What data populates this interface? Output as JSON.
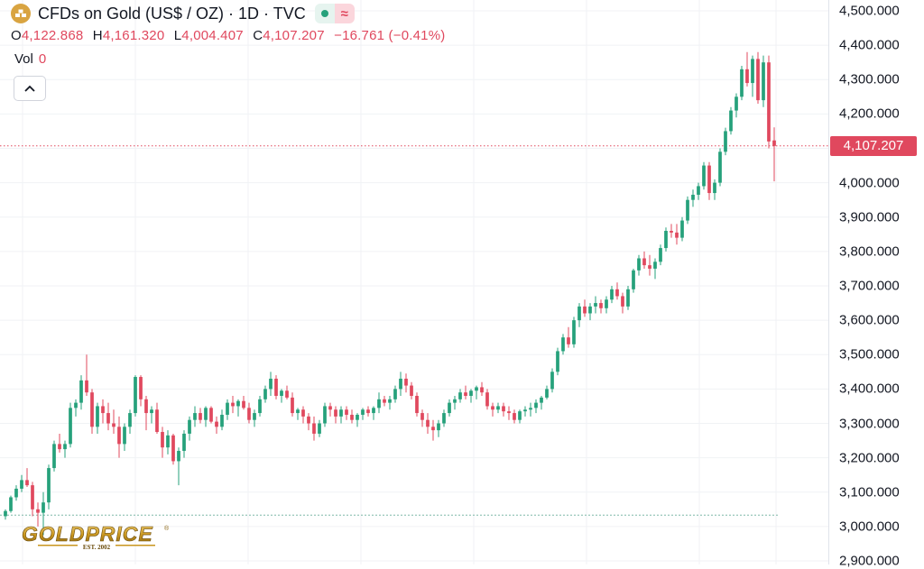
{
  "header": {
    "symbol_title": "CFDs on Gold (US$ / OZ) · 1D · TVC",
    "wave_symbol": "≈",
    "icons": {
      "symbol": "gold-bars-icon",
      "status": "market-open-dot-icon",
      "wave": "approx-wave-icon"
    },
    "ohlc": {
      "o_label": "O",
      "o_value": "4,122.868",
      "h_label": "H",
      "h_value": "4,161.320",
      "l_label": "L",
      "l_value": "4,004.407",
      "c_label": "C",
      "c_value": "4,107.207",
      "change": "−16.761 (−0.41%)"
    },
    "volume": {
      "label": "Vol",
      "value": "0"
    },
    "collapse_icon": "chevron-up-icon"
  },
  "colors": {
    "up": "#26a17b",
    "down": "#e0485e",
    "accent": "#d9a441"
  },
  "price_label": "4,107.207",
  "logo": {
    "text": "GOLDPRICE",
    "subtext": "EST. 2002",
    "mark": "®"
  },
  "chart_data": {
    "type": "candlestick",
    "title": "CFDs on Gold (US$ / OZ) · 1D · TVC",
    "xlabel": "",
    "ylabel": "",
    "ylim": [
      2900,
      4550
    ],
    "grid": true,
    "y_ticks": [
      "4,500.000",
      "4,400.000",
      "4,300.000",
      "4,200.000",
      "4,100.000",
      "4,000.000",
      "3,900.000",
      "3,800.000",
      "3,700.000",
      "3,600.000",
      "3,500.000",
      "3,400.000",
      "3,300.000",
      "3,200.000",
      "3,100.000",
      "3,000.000",
      "2,900.000"
    ],
    "y_tick_values": [
      4500,
      4400,
      4300,
      4200,
      4100,
      4000,
      3900,
      3800,
      3700,
      3600,
      3500,
      3400,
      3300,
      3200,
      3100,
      3000,
      2900
    ],
    "current_price": 4107.207,
    "reference_price": 3033,
    "candles": [
      [
        3030,
        3050,
        3020,
        3045
      ],
      [
        3045,
        3090,
        3040,
        3085
      ],
      [
        3085,
        3120,
        3075,
        3110
      ],
      [
        3110,
        3150,
        3100,
        3135
      ],
      [
        3135,
        3170,
        3115,
        3120
      ],
      [
        3120,
        3130,
        3030,
        3050
      ],
      [
        3050,
        3070,
        3000,
        3040
      ],
      [
        3040,
        3100,
        2975,
        3070
      ],
      [
        3070,
        3180,
        3050,
        3170
      ],
      [
        3170,
        3250,
        3160,
        3240
      ],
      [
        3240,
        3270,
        3215,
        3225
      ],
      [
        3225,
        3250,
        3200,
        3240
      ],
      [
        3240,
        3360,
        3230,
        3345
      ],
      [
        3345,
        3370,
        3320,
        3360
      ],
      [
        3360,
        3440,
        3340,
        3425
      ],
      [
        3425,
        3500,
        3380,
        3390
      ],
      [
        3390,
        3400,
        3270,
        3290
      ],
      [
        3290,
        3360,
        3270,
        3350
      ],
      [
        3350,
        3370,
        3300,
        3330
      ],
      [
        3330,
        3360,
        3280,
        3300
      ],
      [
        3300,
        3340,
        3270,
        3290
      ],
      [
        3290,
        3320,
        3200,
        3240
      ],
      [
        3240,
        3300,
        3220,
        3290
      ],
      [
        3290,
        3340,
        3270,
        3330
      ],
      [
        3330,
        3440,
        3320,
        3435
      ],
      [
        3435,
        3440,
        3350,
        3370
      ],
      [
        3370,
        3380,
        3280,
        3330
      ],
      [
        3330,
        3350,
        3300,
        3340
      ],
      [
        3340,
        3360,
        3270,
        3275
      ],
      [
        3275,
        3290,
        3200,
        3230
      ],
      [
        3230,
        3280,
        3210,
        3265
      ],
      [
        3265,
        3270,
        3180,
        3190
      ],
      [
        3190,
        3230,
        3120,
        3220
      ],
      [
        3220,
        3280,
        3200,
        3270
      ],
      [
        3270,
        3320,
        3250,
        3310
      ],
      [
        3310,
        3350,
        3290,
        3330
      ],
      [
        3330,
        3345,
        3300,
        3310
      ],
      [
        3310,
        3350,
        3290,
        3345
      ],
      [
        3345,
        3350,
        3300,
        3305
      ],
      [
        3305,
        3320,
        3270,
        3290
      ],
      [
        3290,
        3340,
        3280,
        3325
      ],
      [
        3325,
        3370,
        3310,
        3360
      ],
      [
        3360,
        3380,
        3330,
        3350
      ],
      [
        3350,
        3370,
        3320,
        3365
      ],
      [
        3365,
        3380,
        3340,
        3345
      ],
      [
        3345,
        3360,
        3300,
        3310
      ],
      [
        3310,
        3340,
        3290,
        3330
      ],
      [
        3330,
        3380,
        3320,
        3370
      ],
      [
        3370,
        3410,
        3360,
        3400
      ],
      [
        3400,
        3450,
        3380,
        3430
      ],
      [
        3430,
        3440,
        3370,
        3380
      ],
      [
        3380,
        3400,
        3360,
        3395
      ],
      [
        3395,
        3410,
        3370,
        3375
      ],
      [
        3375,
        3390,
        3320,
        3330
      ],
      [
        3330,
        3345,
        3310,
        3340
      ],
      [
        3340,
        3350,
        3300,
        3320
      ],
      [
        3320,
        3330,
        3280,
        3300
      ],
      [
        3300,
        3320,
        3250,
        3270
      ],
      [
        3270,
        3310,
        3260,
        3300
      ],
      [
        3300,
        3360,
        3290,
        3350
      ],
      [
        3350,
        3360,
        3320,
        3340
      ],
      [
        3340,
        3350,
        3300,
        3320
      ],
      [
        3320,
        3350,
        3300,
        3340
      ],
      [
        3340,
        3350,
        3310,
        3325
      ],
      [
        3325,
        3340,
        3300,
        3310
      ],
      [
        3310,
        3330,
        3290,
        3325
      ],
      [
        3325,
        3345,
        3310,
        3340
      ],
      [
        3340,
        3350,
        3320,
        3330
      ],
      [
        3330,
        3350,
        3310,
        3345
      ],
      [
        3345,
        3390,
        3330,
        3370
      ],
      [
        3370,
        3380,
        3350,
        3360
      ],
      [
        3360,
        3380,
        3340,
        3370
      ],
      [
        3370,
        3410,
        3360,
        3400
      ],
      [
        3400,
        3450,
        3380,
        3430
      ],
      [
        3430,
        3445,
        3390,
        3410
      ],
      [
        3410,
        3420,
        3370,
        3380
      ],
      [
        3380,
        3390,
        3320,
        3330
      ],
      [
        3330,
        3340,
        3290,
        3310
      ],
      [
        3310,
        3330,
        3270,
        3290
      ],
      [
        3290,
        3310,
        3250,
        3280
      ],
      [
        3280,
        3310,
        3260,
        3300
      ],
      [
        3300,
        3340,
        3290,
        3330
      ],
      [
        3330,
        3370,
        3320,
        3360
      ],
      [
        3360,
        3380,
        3340,
        3370
      ],
      [
        3370,
        3400,
        3360,
        3390
      ],
      [
        3390,
        3410,
        3370,
        3380
      ],
      [
        3380,
        3400,
        3360,
        3395
      ],
      [
        3395,
        3410,
        3370,
        3405
      ],
      [
        3405,
        3420,
        3380,
        3390
      ],
      [
        3390,
        3400,
        3340,
        3350
      ],
      [
        3350,
        3360,
        3320,
        3340
      ],
      [
        3340,
        3360,
        3330,
        3350
      ],
      [
        3350,
        3360,
        3320,
        3335
      ],
      [
        3335,
        3350,
        3310,
        3330
      ],
      [
        3330,
        3340,
        3300,
        3310
      ],
      [
        3310,
        3340,
        3300,
        3335
      ],
      [
        3335,
        3350,
        3320,
        3340
      ],
      [
        3340,
        3360,
        3320,
        3345
      ],
      [
        3345,
        3370,
        3330,
        3360
      ],
      [
        3360,
        3380,
        3340,
        3375
      ],
      [
        3375,
        3410,
        3370,
        3400
      ],
      [
        3400,
        3460,
        3390,
        3450
      ],
      [
        3450,
        3520,
        3440,
        3510
      ],
      [
        3510,
        3560,
        3500,
        3550
      ],
      [
        3550,
        3580,
        3520,
        3530
      ],
      [
        3530,
        3610,
        3520,
        3600
      ],
      [
        3600,
        3650,
        3580,
        3640
      ],
      [
        3640,
        3660,
        3610,
        3620
      ],
      [
        3620,
        3650,
        3600,
        3640
      ],
      [
        3640,
        3670,
        3620,
        3650
      ],
      [
        3650,
        3660,
        3620,
        3635
      ],
      [
        3635,
        3670,
        3620,
        3660
      ],
      [
        3660,
        3700,
        3650,
        3690
      ],
      [
        3690,
        3710,
        3660,
        3670
      ],
      [
        3670,
        3680,
        3620,
        3640
      ],
      [
        3640,
        3700,
        3630,
        3690
      ],
      [
        3690,
        3750,
        3680,
        3745
      ],
      [
        3745,
        3790,
        3730,
        3780
      ],
      [
        3780,
        3800,
        3750,
        3760
      ],
      [
        3760,
        3790,
        3730,
        3750
      ],
      [
        3750,
        3780,
        3720,
        3770
      ],
      [
        3770,
        3820,
        3760,
        3810
      ],
      [
        3810,
        3870,
        3800,
        3860
      ],
      [
        3860,
        3880,
        3840,
        3855
      ],
      [
        3855,
        3880,
        3820,
        3840
      ],
      [
        3840,
        3900,
        3830,
        3890
      ],
      [
        3890,
        3960,
        3880,
        3950
      ],
      [
        3950,
        3980,
        3930,
        3965
      ],
      [
        3965,
        4000,
        3950,
        3990
      ],
      [
        3990,
        4060,
        3980,
        4050
      ],
      [
        4050,
        4060,
        3950,
        3970
      ],
      [
        3970,
        4010,
        3950,
        4000
      ],
      [
        4000,
        4100,
        3990,
        4090
      ],
      [
        4090,
        4160,
        4080,
        4150
      ],
      [
        4150,
        4220,
        4140,
        4210
      ],
      [
        4210,
        4260,
        4190,
        4250
      ],
      [
        4250,
        4340,
        4240,
        4330
      ],
      [
        4330,
        4380,
        4280,
        4290
      ],
      [
        4290,
        4370,
        4250,
        4360
      ],
      [
        4360,
        4380,
        4230,
        4240
      ],
      [
        4240,
        4370,
        4220,
        4350
      ],
      [
        4350,
        4370,
        4100,
        4120
      ],
      [
        4123,
        4161,
        4004,
        4107
      ]
    ]
  }
}
